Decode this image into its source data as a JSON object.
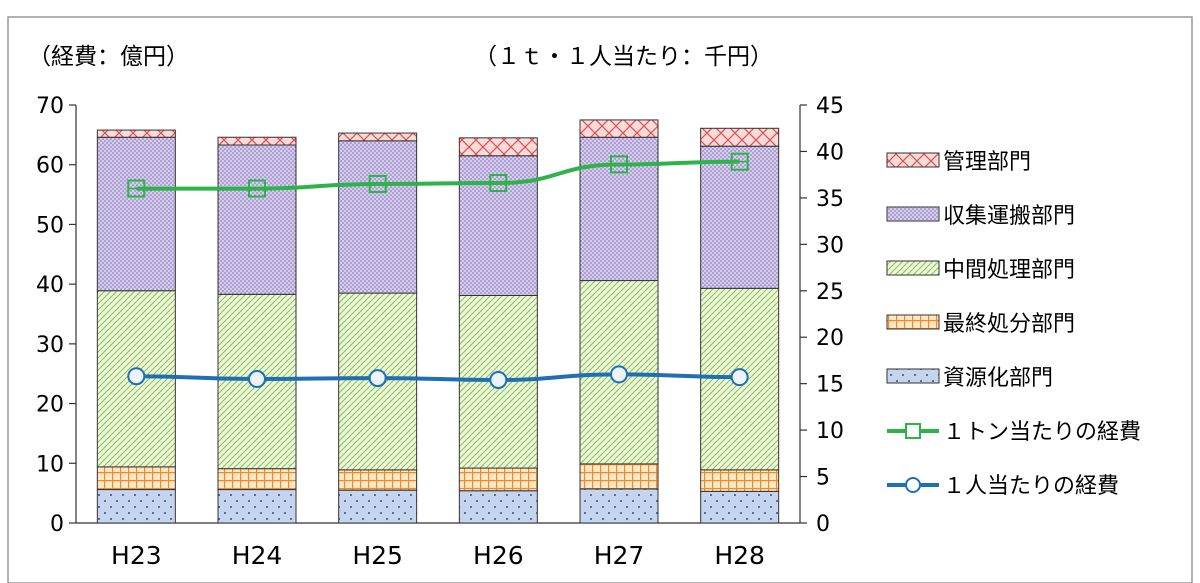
{
  "chart_data": {
    "type": "bar",
    "stacked": true,
    "title": "",
    "left_unit_label": "（経費：億円）",
    "right_unit_label": "（１ｔ・１人当たり：千円）",
    "categories": [
      "H23",
      "H24",
      "H25",
      "H26",
      "H27",
      "H28"
    ],
    "y_left": {
      "range": [
        0,
        70
      ],
      "ticks": [
        "0",
        "10",
        "20",
        "30",
        "40",
        "50",
        "60",
        "70"
      ]
    },
    "y_right": {
      "range": [
        0,
        45
      ],
      "ticks": [
        "0",
        "5",
        "10",
        "15",
        "20",
        "25",
        "30",
        "35",
        "40",
        "45"
      ]
    },
    "series": [
      {
        "name": "資源化部門",
        "axis": "left",
        "color": "#c5d5f0",
        "pattern": "dots",
        "values": [
          5.6,
          5.6,
          5.5,
          5.4,
          5.7,
          5.3
        ]
      },
      {
        "name": "最終処分部門",
        "axis": "left",
        "color": "#ffd7a8",
        "pattern": "grid-orange",
        "values": [
          3.8,
          3.5,
          3.4,
          3.8,
          4.2,
          3.6
        ]
      },
      {
        "name": "中間処理部門",
        "axis": "left",
        "color": "#e4f2cc",
        "pattern": "diag-green",
        "values": [
          29.5,
          29.2,
          29.6,
          28.9,
          30.7,
          30.4
        ]
      },
      {
        "name": "収集運搬部門",
        "axis": "left",
        "color": "#cbbfe4",
        "pattern": "dots-purple",
        "values": [
          25.7,
          25.0,
          25.5,
          23.4,
          24.0,
          23.8
        ]
      },
      {
        "name": "管理部門",
        "axis": "left",
        "color": "#f7c6c6",
        "pattern": "cross-red",
        "values": [
          1.2,
          1.3,
          1.3,
          3.0,
          2.9,
          3.0
        ]
      }
    ],
    "line_series": [
      {
        "name": "１トン当たりの経費",
        "axis": "right",
        "color": "#2db34a",
        "marker": "square",
        "values": [
          36.0,
          36.0,
          36.5,
          36.6,
          38.6,
          38.9
        ]
      },
      {
        "name": "１人当たりの経費",
        "axis": "right",
        "color": "#1f6fb4",
        "marker": "circle",
        "values": [
          15.8,
          15.5,
          15.6,
          15.4,
          16.0,
          15.7
        ]
      }
    ],
    "legend": {
      "placement": "right",
      "entries": [
        "管理部門",
        "収集運搬部門",
        "中間処理部門",
        "最終処分部門",
        "資源化部門",
        "１トン当たりの経費",
        "１人当たりの経費"
      ]
    },
    "grid": false
  }
}
